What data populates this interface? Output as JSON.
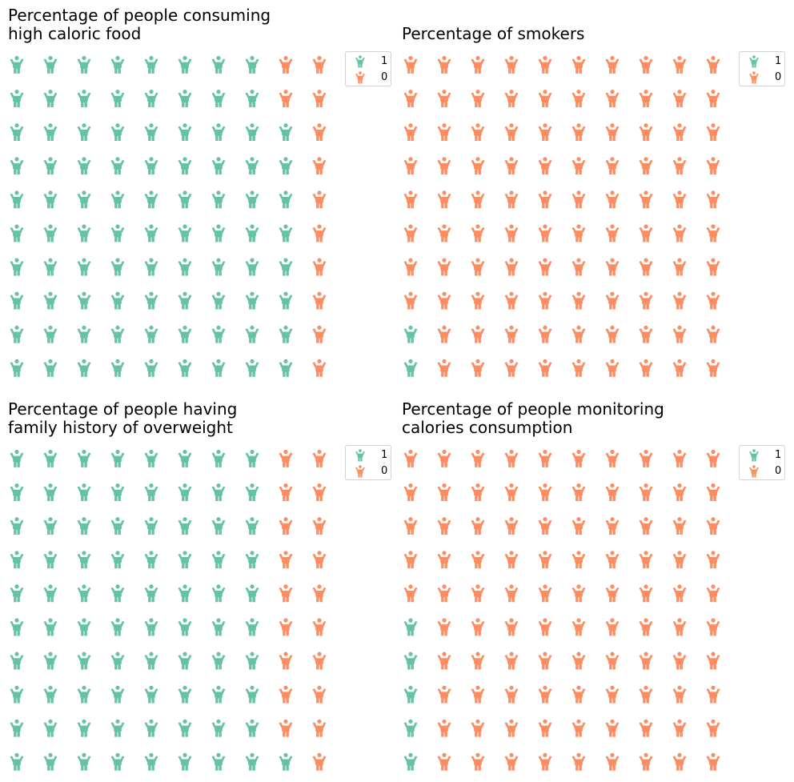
{
  "colors": {
    "1": "#66c2a5",
    "0": "#fc8d62"
  },
  "icon": "child-figure-icon",
  "chart_data": [
    {
      "type": "waffle",
      "title": [
        "Percentage of people consuming",
        "high caloric food"
      ],
      "rows": 10,
      "columns": 10,
      "fill_order": "column-major, bottom-left start",
      "categories": [
        "1",
        "0"
      ],
      "values": [
        88,
        12
      ],
      "legend": {
        "position": "top-right",
        "entries": [
          "1",
          "0"
        ]
      }
    },
    {
      "type": "waffle",
      "title": [
        "Percentage of smokers"
      ],
      "rows": 10,
      "columns": 10,
      "fill_order": "column-major, bottom-left start",
      "categories": [
        "1",
        "0"
      ],
      "values": [
        2,
        98
      ],
      "legend": {
        "position": "top-right",
        "entries": [
          "1",
          "0"
        ]
      }
    },
    {
      "type": "waffle",
      "title": [
        "Percentage of people having",
        "family history of overweight"
      ],
      "rows": 10,
      "columns": 10,
      "fill_order": "column-major, bottom-left start",
      "categories": [
        "1",
        "0"
      ],
      "values": [
        81,
        19
      ],
      "legend": {
        "position": "top-right",
        "entries": [
          "1",
          "0"
        ]
      }
    },
    {
      "type": "waffle",
      "title": [
        "Percentage of people monitoring",
        "calories consumption"
      ],
      "rows": 10,
      "columns": 10,
      "fill_order": "column-major, bottom-left start",
      "categories": [
        "1",
        "0"
      ],
      "values": [
        5,
        95
      ],
      "legend": {
        "position": "top-right",
        "entries": [
          "1",
          "0"
        ]
      }
    }
  ]
}
